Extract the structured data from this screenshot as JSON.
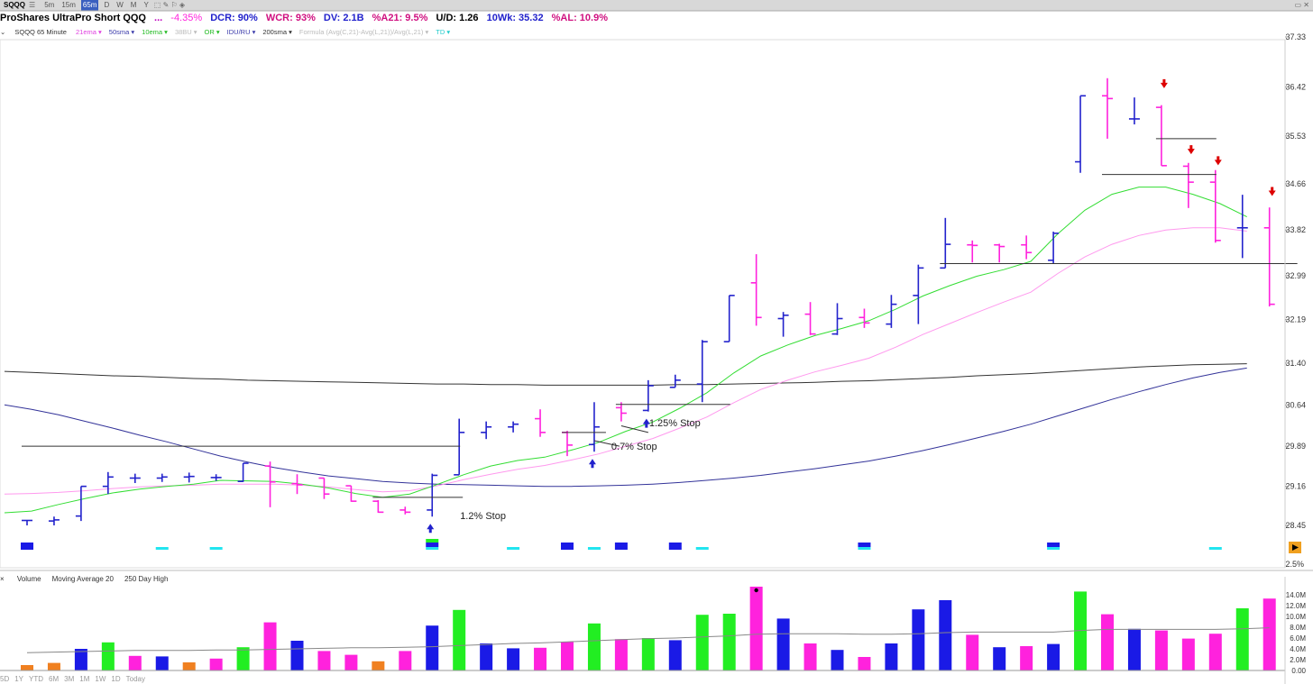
{
  "toolbar": {
    "symbol": "SQQQ",
    "timeframes": [
      "5m",
      "15m",
      "65m",
      "D",
      "W",
      "M",
      "Y"
    ],
    "active_timeframe": "65m"
  },
  "info": {
    "name": "ProShares UltraPro Short QQQ",
    "dots": "...",
    "change": "-4.35%",
    "dcr": "DCR: 90%",
    "wcr": "WCR: 93%",
    "dv": "DV: 2.1B",
    "a21": "%A21: 9.5%",
    "ud": "U/D: 1.26",
    "wk10": "10Wk: 35.32",
    "al": "%AL: 10.9%"
  },
  "studies": {
    "title": "SQQQ 65 Minute",
    "items": [
      "21ema",
      "50sma",
      "10ema",
      "38BU",
      "OR",
      "IDU/RU",
      "200sma",
      "Formula (Avg(C,21)-Avg(L,21))/Avg(L,21)",
      "TD"
    ],
    "colors": [
      "#e040e0",
      "#3a3aaa",
      "#22bb22",
      "#bbbbbb",
      "#22bb22",
      "#3a3aaa",
      "#333333",
      "#bbbbbb",
      "#22cccc"
    ]
  },
  "volume_pane": {
    "items": [
      "Volume",
      "Moving Average 20",
      "250 Day High"
    ],
    "axis_labels": [
      "14.0M",
      "12.0M",
      "10.0M",
      "8.0M",
      "6.0M",
      "4.0M",
      "2.0M",
      "0.00"
    ]
  },
  "bottom": {
    "items": [
      "5D",
      "1Y",
      "YTD",
      "6M",
      "3M",
      "1M",
      "1W",
      "1D",
      "Today"
    ]
  },
  "price_axis": [
    "37.33",
    "36.42",
    "35.53",
    "34.66",
    "33.82",
    "32.99",
    "32.19",
    "31.40",
    "30.64",
    "29.89",
    "29.16",
    "28.45"
  ],
  "pct_label": "2.5%",
  "annotations": {
    "stop1": "1.2% Stop",
    "stop2": "0.7% Stop",
    "stop3": "1.25% Stop"
  },
  "colors": {
    "up": "#2222cc",
    "down": "#ff22dd",
    "ema10": "#33dd33",
    "ema21": "#ff99ee",
    "sma50": "#333399",
    "sma200": "#333333",
    "arrow_up": "#2222cc",
    "arrow_down": "#dd0000",
    "vol_green": "#22ee22",
    "vol_orange": "#f08020",
    "cyan": "#22e5f0"
  },
  "chart_data": {
    "type": "ohlc",
    "bars": [
      {
        "o": 28.54,
        "h": 28.54,
        "l": 28.45,
        "c": 28.54,
        "vol": 1.0,
        "col": "orange"
      },
      {
        "o": 28.53,
        "h": 28.61,
        "l": 28.45,
        "c": 28.55,
        "vol": 1.4,
        "col": "orange"
      },
      {
        "o": 28.62,
        "h": 29.16,
        "l": 28.53,
        "c": 29.16,
        "vol": 4.0,
        "col": "blue"
      },
      {
        "o": 29.16,
        "h": 29.42,
        "l": 29.02,
        "c": 29.33,
        "vol": 5.2,
        "col": "green"
      },
      {
        "o": 29.31,
        "h": 29.39,
        "l": 29.22,
        "c": 29.31,
        "vol": 2.7,
        "col": "pink"
      },
      {
        "o": 29.31,
        "h": 29.39,
        "l": 29.24,
        "c": 29.33,
        "vol": 2.6,
        "col": "blue"
      },
      {
        "o": 29.33,
        "h": 29.41,
        "l": 29.23,
        "c": 29.34,
        "vol": 1.5,
        "col": "orange"
      },
      {
        "o": 29.32,
        "h": 29.38,
        "l": 29.26,
        "c": 29.32,
        "vol": 2.2,
        "col": "pink"
      },
      {
        "o": 29.25,
        "h": 29.58,
        "l": 29.24,
        "c": 29.58,
        "vol": 4.3,
        "col": "green"
      },
      {
        "o": 29.53,
        "h": 29.61,
        "l": 28.78,
        "c": 29.24,
        "vol": 8.9,
        "col": "pink"
      },
      {
        "o": 29.21,
        "h": 29.38,
        "l": 29.02,
        "c": 29.19,
        "vol": 5.5,
        "col": "blue"
      },
      {
        "o": 29.31,
        "h": 29.31,
        "l": 28.93,
        "c": 29.02,
        "vol": 3.6,
        "col": "pink"
      },
      {
        "o": 29.17,
        "h": 29.17,
        "l": 28.88,
        "c": 28.89,
        "vol": 2.9,
        "col": "pink"
      },
      {
        "o": 28.89,
        "h": 28.91,
        "l": 28.68,
        "c": 28.69,
        "vol": 1.7,
        "col": "orange"
      },
      {
        "o": 28.73,
        "h": 28.79,
        "l": 28.65,
        "c": 28.69,
        "vol": 3.6,
        "col": "pink"
      },
      {
        "o": 28.73,
        "h": 29.39,
        "l": 28.61,
        "c": 29.36,
        "vol": 8.3,
        "col": "blue"
      },
      {
        "o": 29.37,
        "h": 30.39,
        "l": 29.37,
        "c": 30.14,
        "vol": 11.2,
        "col": "green"
      },
      {
        "o": 30.14,
        "h": 30.34,
        "l": 30.02,
        "c": 30.24,
        "vol": 5.0,
        "col": "blue"
      },
      {
        "o": 30.24,
        "h": 30.34,
        "l": 30.14,
        "c": 30.29,
        "vol": 4.1,
        "col": "blue"
      },
      {
        "o": 30.39,
        "h": 30.56,
        "l": 30.06,
        "c": 30.14,
        "vol": 4.2,
        "col": "pink"
      },
      {
        "o": 30.14,
        "h": 30.17,
        "l": 29.71,
        "c": 29.91,
        "vol": 5.3,
        "col": "pink"
      },
      {
        "o": 29.92,
        "h": 30.69,
        "l": 29.79,
        "c": 30.24,
        "vol": 8.7,
        "col": "green"
      },
      {
        "o": 30.59,
        "h": 30.69,
        "l": 30.34,
        "c": 30.49,
        "vol": 5.8,
        "col": "pink"
      },
      {
        "o": 30.54,
        "h": 31.09,
        "l": 30.52,
        "c": 30.99,
        "vol": 6.0,
        "col": "green"
      },
      {
        "o": 30.96,
        "h": 31.19,
        "l": 30.96,
        "c": 31.09,
        "vol": 5.6,
        "col": "blue"
      },
      {
        "o": 31.02,
        "h": 31.82,
        "l": 30.69,
        "c": 31.79,
        "vol": 10.3,
        "col": "green"
      },
      {
        "o": 31.79,
        "h": 32.63,
        "l": 31.79,
        "c": 32.63,
        "vol": 10.5,
        "col": "green"
      },
      {
        "o": 32.86,
        "h": 33.38,
        "l": 32.08,
        "c": 32.23,
        "vol": 15.5,
        "col": "pink"
      },
      {
        "o": 32.21,
        "h": 32.33,
        "l": 31.88,
        "c": 32.27,
        "vol": 9.6,
        "col": "blue"
      },
      {
        "o": 32.29,
        "h": 32.51,
        "l": 31.91,
        "c": 31.93,
        "vol": 5.0,
        "col": "pink"
      },
      {
        "o": 31.93,
        "h": 32.49,
        "l": 31.91,
        "c": 32.21,
        "vol": 3.8,
        "col": "blue"
      },
      {
        "o": 32.23,
        "h": 32.39,
        "l": 32.04,
        "c": 32.13,
        "vol": 2.5,
        "col": "pink"
      },
      {
        "o": 32.11,
        "h": 32.64,
        "l": 32.04,
        "c": 32.47,
        "vol": 5.0,
        "col": "blue"
      },
      {
        "o": 32.63,
        "h": 33.19,
        "l": 32.11,
        "c": 33.13,
        "vol": 11.3,
        "col": "blue"
      },
      {
        "o": 33.13,
        "h": 34.04,
        "l": 33.13,
        "c": 33.56,
        "vol": 13.0,
        "col": "blue"
      },
      {
        "o": 33.55,
        "h": 33.63,
        "l": 33.23,
        "c": 33.54,
        "vol": 6.6,
        "col": "pink"
      },
      {
        "o": 33.55,
        "h": 33.57,
        "l": 33.23,
        "c": 33.52,
        "vol": 4.3,
        "col": "blue"
      },
      {
        "o": 33.55,
        "h": 33.72,
        "l": 33.29,
        "c": 33.41,
        "vol": 4.5,
        "col": "pink"
      },
      {
        "o": 33.27,
        "h": 33.79,
        "l": 33.21,
        "c": 33.76,
        "vol": 4.9,
        "col": "blue"
      },
      {
        "o": 35.06,
        "h": 36.26,
        "l": 34.86,
        "c": 36.26,
        "vol": 14.6,
        "col": "green"
      },
      {
        "o": 36.26,
        "h": 36.58,
        "l": 35.48,
        "c": 36.21,
        "vol": 10.4,
        "col": "pink"
      },
      {
        "o": 35.84,
        "h": 36.23,
        "l": 35.74,
        "c": 35.84,
        "vol": 7.7,
        "col": "blue"
      },
      {
        "o": 36.05,
        "h": 36.09,
        "l": 34.99,
        "c": 34.99,
        "vol": 7.4,
        "col": "pink"
      },
      {
        "o": 34.98,
        "h": 35.04,
        "l": 34.22,
        "c": 34.69,
        "vol": 5.9,
        "col": "pink"
      },
      {
        "o": 34.69,
        "h": 34.91,
        "l": 33.59,
        "c": 33.63,
        "vol": 6.8,
        "col": "pink"
      },
      {
        "o": 33.86,
        "h": 34.46,
        "l": 33.31,
        "c": 33.86,
        "vol": 11.5,
        "col": "green"
      },
      {
        "o": 33.86,
        "h": 34.23,
        "l": 32.43,
        "c": 32.47,
        "vol": 13.3,
        "col": "pink"
      }
    ],
    "ema10": [
      28.68,
      28.71,
      28.83,
      28.94,
      29.04,
      29.11,
      29.16,
      29.2,
      29.27,
      29.26,
      29.25,
      29.2,
      29.13,
      29.03,
      28.96,
      29.02,
      29.19,
      29.37,
      29.53,
      29.63,
      29.69,
      29.82,
      29.96,
      30.16,
      30.33,
      30.58,
      30.86,
      31.22,
      31.53,
      31.73,
      31.9,
      32.03,
      32.17,
      32.38,
      32.62,
      32.81,
      32.98,
      33.1,
      33.25,
      33.75,
      34.18,
      34.47,
      34.6,
      34.6,
      34.47,
      34.3,
      34.06
    ],
    "ema21": [
      29.02,
      29.03,
      29.05,
      29.08,
      29.12,
      29.15,
      29.17,
      29.18,
      29.2,
      29.2,
      29.2,
      29.18,
      29.15,
      29.1,
      29.06,
      29.08,
      29.17,
      29.28,
      29.38,
      29.47,
      29.54,
      29.64,
      29.75,
      29.89,
      30.03,
      30.22,
      30.42,
      30.68,
      30.92,
      31.09,
      31.24,
      31.36,
      31.49,
      31.69,
      31.92,
      32.12,
      32.32,
      32.51,
      32.69,
      33.03,
      33.33,
      33.56,
      33.72,
      33.82,
      33.86,
      33.86,
      33.8
    ],
    "sma50": [
      30.64,
      30.56,
      30.46,
      30.34,
      30.22,
      30.09,
      29.97,
      29.84,
      29.71,
      29.6,
      29.5,
      29.42,
      29.35,
      29.3,
      29.25,
      29.22,
      29.2,
      29.19,
      29.18,
      29.17,
      29.16,
      29.16,
      29.17,
      29.18,
      29.2,
      29.23,
      29.27,
      29.31,
      29.36,
      29.42,
      29.48,
      29.55,
      29.62,
      29.71,
      29.81,
      29.92,
      30.04,
      30.16,
      30.29,
      30.44,
      30.59,
      30.74,
      30.88,
      31.01,
      31.13,
      31.23,
      31.31
    ],
    "sma200": [
      31.25,
      31.23,
      31.21,
      31.19,
      31.17,
      31.16,
      31.14,
      31.12,
      31.11,
      31.09,
      31.08,
      31.07,
      31.06,
      31.05,
      31.04,
      31.03,
      31.02,
      31.02,
      31.01,
      31.01,
      31.0,
      31.0,
      31.0,
      31.0,
      31.0,
      31.01,
      31.01,
      31.02,
      31.03,
      31.04,
      31.05,
      31.07,
      31.08,
      31.1,
      31.12,
      31.14,
      31.17,
      31.19,
      31.21,
      31.24,
      31.27,
      31.3,
      31.33,
      31.35,
      31.37,
      31.38,
      31.39
    ],
    "vol_ma": [
      3.3,
      3.4,
      3.5,
      3.6,
      3.7,
      3.7,
      3.7,
      3.8,
      3.8,
      3.9,
      4.0,
      4.1,
      4.2,
      4.2,
      4.3,
      4.4,
      4.6,
      4.8,
      5.0,
      5.1,
      5.3,
      5.5,
      5.7,
      5.9,
      6.0,
      6.2,
      6.4,
      6.7,
      6.8,
      6.8,
      6.8,
      6.7,
      6.7,
      6.8,
      7.0,
      7.1,
      7.1,
      7.1,
      7.1,
      7.4,
      7.6,
      7.6,
      7.6,
      7.6,
      7.6,
      7.7,
      7.9
    ]
  }
}
